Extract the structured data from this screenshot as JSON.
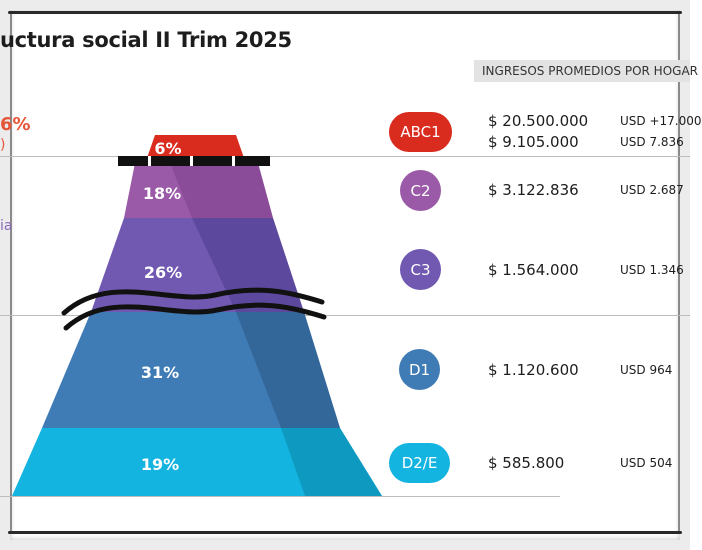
{
  "title": "uctura social II Trim 2025",
  "header": "INGRESOS PROMEDIOS POR HOGAR",
  "left_fragments": {
    "pct": "6%",
    "paren": ")",
    "ia": "ia"
  },
  "colors": {
    "abc1": "#d92b1e",
    "c2": "#9a5aa7",
    "c3": "#7158b0",
    "d1": "#3f7bb5",
    "d2e": "#14b4e0",
    "left_accent": "#e4553a"
  },
  "segments": [
    {
      "id": "abc1",
      "label": "6%"
    },
    {
      "id": "c2",
      "label": "18%"
    },
    {
      "id": "c3",
      "label": "26%"
    },
    {
      "id": "d1",
      "label": "31%"
    },
    {
      "id": "d2e",
      "label": "19%"
    }
  ],
  "rows": [
    {
      "id": "abc1",
      "badge": "ABC1",
      "pesos": [
        "$ 20.500.000",
        "$ 9.105.000"
      ],
      "usd": [
        "USD +17.000",
        "USD 7.836"
      ]
    },
    {
      "id": "c2",
      "badge": "C2",
      "pesos": [
        "$ 3.122.836"
      ],
      "usd": [
        "USD 2.687"
      ]
    },
    {
      "id": "c3",
      "badge": "C3",
      "pesos": [
        "$ 1.564.000"
      ],
      "usd": [
        "USD 1.346"
      ]
    },
    {
      "id": "d1",
      "badge": "D1",
      "pesos": [
        "$ 1.120.600"
      ],
      "usd": [
        "USD 964"
      ]
    },
    {
      "id": "d2e",
      "badge": "D2/E",
      "pesos": [
        "$ 585.800"
      ],
      "usd": [
        "USD 504"
      ]
    }
  ]
}
